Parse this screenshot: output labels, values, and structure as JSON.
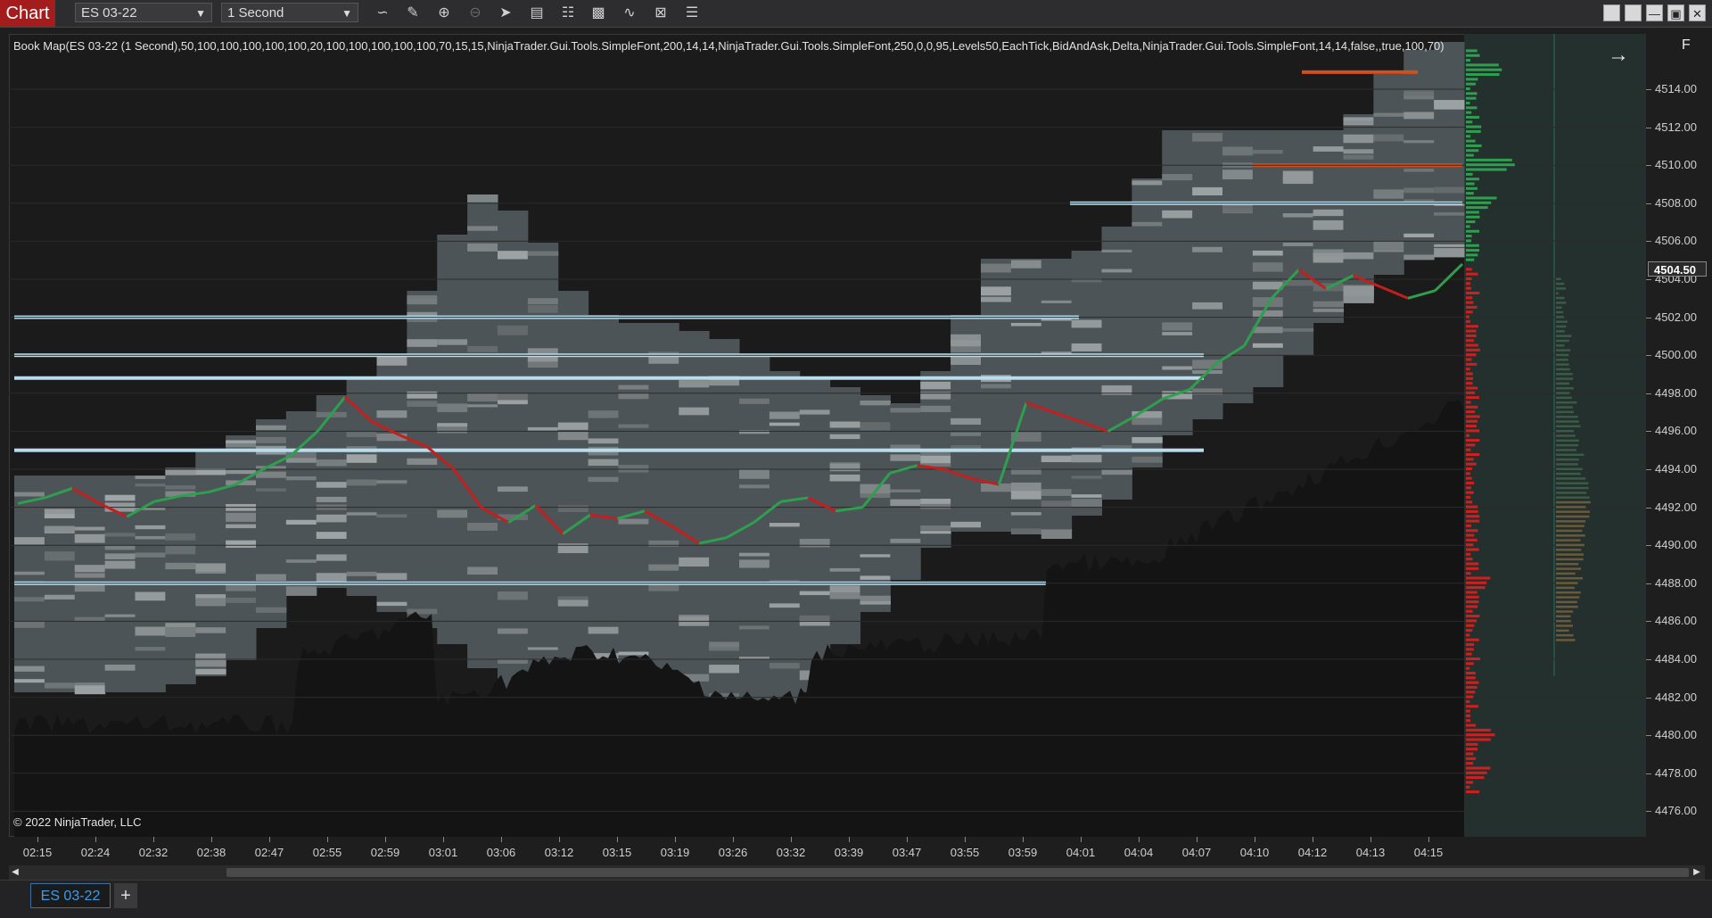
{
  "toolbar": {
    "chart_label": "Chart",
    "instrument": "ES 03-22",
    "interval": "1 Second",
    "icons": [
      "line-tool-icon",
      "pencil-icon",
      "zoom-in-icon",
      "zoom-out-icon",
      "pointer-icon",
      "data-box-icon",
      "properties-icon",
      "indicators-icon",
      "strategies-icon",
      "templates-icon",
      "list-icon"
    ]
  },
  "window": {
    "buttons": [
      "restore-icon",
      "tile-icon",
      "minimize-icon",
      "maximize-icon",
      "close-icon"
    ]
  },
  "chart": {
    "title_line": "Book Map(ES 03-22 (1 Second),50,100,100,100,100,100,20,100,100,100,100,100,70,15,15,NinjaTrader.Gui.Tools.SimpleFont,200,14,14,NinjaTrader.Gui.Tools.SimpleFont,250,0,0,95,Levels50,EachTick,BidAndAsk,Delta,NinjaTrader.Gui.Tools.SimpleFont,14,14,false,,true,100,70)",
    "copyright": "© 2022 NinjaTrader, LLC",
    "f_button": "F",
    "arrow_button": "→",
    "current_price": "4504.50",
    "colors": {
      "up": "#2e9e4f",
      "down": "#c21f1f",
      "book_light": "#b8dcec",
      "book_mid": "#5f676b",
      "ask_bar": "#2e9e4f",
      "bid_bar": "#d01f1f"
    }
  },
  "chart_data": {
    "type": "line",
    "title": "",
    "xlabel": "",
    "ylabel": "",
    "ylim": [
      4475,
      4516
    ],
    "y_ticks": [
      "4514.00",
      "4512.00",
      "4510.00",
      "4508.00",
      "4506.00",
      "4504.00",
      "4502.00",
      "4500.00",
      "4498.00",
      "4496.00",
      "4494.00",
      "4492.00",
      "4490.00",
      "4488.00",
      "4486.00",
      "4484.00",
      "4482.00",
      "4480.00",
      "4478.00",
      "4476.00"
    ],
    "x_ticks": [
      "02:15",
      "02:24",
      "02:32",
      "02:38",
      "02:47",
      "02:55",
      "02:59",
      "03:01",
      "03:06",
      "03:12",
      "03:15",
      "03:19",
      "03:26",
      "03:32",
      "03:39",
      "03:47",
      "03:55",
      "03:59",
      "04:01",
      "04:04",
      "04:07",
      "04:10",
      "04:12",
      "04:13",
      "04:15"
    ],
    "price": [
      4492.2,
      4492.5,
      4493.0,
      4492.2,
      4491.5,
      4492.3,
      4492.6,
      4492.8,
      4493.2,
      4494.0,
      4494.7,
      4496.0,
      4497.8,
      4496.5,
      4495.8,
      4495.2,
      4494.0,
      4492.0,
      4491.2,
      4492.1,
      4490.6,
      4491.6,
      4491.4,
      4491.8,
      4491.0,
      4490.1,
      4490.4,
      4491.2,
      4492.3,
      4492.5,
      4491.8,
      4492.0,
      4493.8,
      4494.2,
      4494.0,
      4493.5,
      4493.2,
      4497.5,
      4497.0,
      4496.5,
      4496.0,
      4496.8,
      4497.7,
      4498.2,
      4499.6,
      4500.5,
      4503.0,
      4504.5,
      4503.5,
      4504.2,
      4503.6,
      4503.0,
      4503.4,
      4504.8
    ]
  },
  "tabs": {
    "active": "ES 03-22",
    "add": "+"
  }
}
